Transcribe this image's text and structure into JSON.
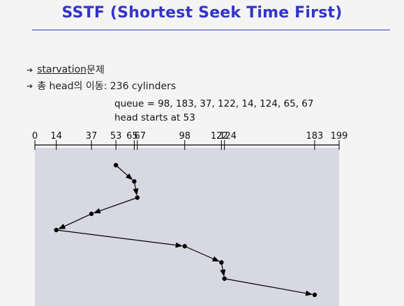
{
  "title": "SSTF (Shortest Seek Time First)",
  "bullets": [
    {
      "main": "starvation",
      "rest": " 문제"
    },
    {
      "main": "총 head의 이동: 236 cylinders",
      "rest": ""
    }
  ],
  "queue_text": "queue = 98, 183, 37, 122, 14, 124, 65, 67",
  "start_text": "head starts at 53",
  "axis": {
    "min": 0,
    "max": 199,
    "ticks": [
      0,
      14,
      37,
      53,
      65,
      67,
      98,
      122,
      124,
      183,
      199
    ]
  },
  "sequence": [
    53,
    65,
    67,
    37,
    14,
    98,
    122,
    124,
    183
  ],
  "colors": {
    "title": "#3333cc",
    "rule": "#9090d8",
    "panel": "#d8d8e2",
    "line": "#000000"
  }
}
